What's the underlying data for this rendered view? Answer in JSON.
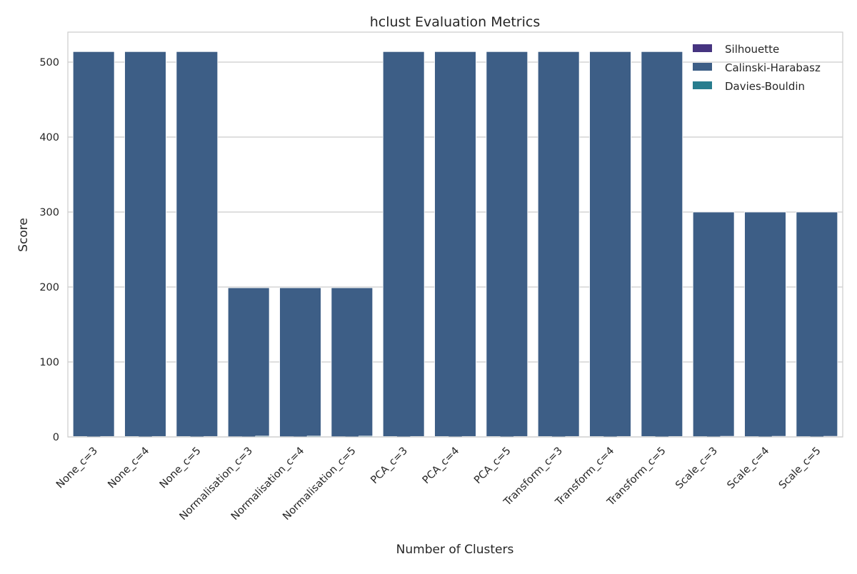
{
  "chart_data": {
    "type": "bar",
    "title": "hclust Evaluation Metrics",
    "xlabel": "Number of Clusters",
    "ylabel": "Score",
    "ylim": [
      0,
      540
    ],
    "yticks": [
      0,
      100,
      200,
      300,
      400,
      500
    ],
    "grid": true,
    "legend_position": "top-right",
    "categories": [
      "None_c=3",
      "None_c=4",
      "None_c=5",
      "Normalisation_c=3",
      "Normalisation_c=4",
      "Normalisation_c=5",
      "PCA_c=3",
      "PCA_c=4",
      "PCA_c=5",
      "Transform_c=3",
      "Transform_c=4",
      "Transform_c=5",
      "Scale_c=3",
      "Scale_c=4",
      "Scale_c=5"
    ],
    "series": [
      {
        "name": "Silhouette",
        "color": "#463480",
        "values": [
          0.55,
          0.55,
          0.55,
          0.3,
          0.3,
          0.3,
          0.55,
          0.55,
          0.55,
          0.55,
          0.55,
          0.55,
          0.45,
          0.45,
          0.45
        ]
      },
      {
        "name": "Calinski-Harabasz",
        "color": "#3d5e86",
        "values": [
          514,
          514,
          514,
          199,
          199,
          199,
          514,
          514,
          514,
          514,
          514,
          514,
          300,
          300,
          300
        ]
      },
      {
        "name": "Davies-Bouldin",
        "color": "#287d8e",
        "values": [
          0.6,
          0.6,
          0.6,
          1.1,
          1.1,
          1.1,
          0.6,
          0.6,
          0.6,
          0.6,
          0.6,
          0.6,
          0.8,
          0.8,
          0.8
        ]
      }
    ]
  }
}
